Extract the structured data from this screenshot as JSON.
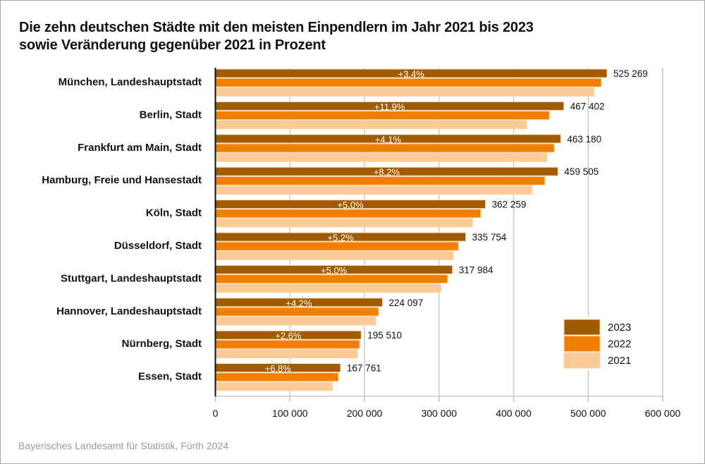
{
  "chart_data": {
    "type": "bar",
    "orientation": "horizontal",
    "title": "Die zehn deutschen Städte mit den meisten Einpendlern im Jahr 2021 bis 2023 sowie Veränderung gegenüber 2021 in Prozent",
    "title_lines": [
      "Die zehn deutschen Städte mit den meisten Einpendlern im Jahr 2021 bis 2023",
      "sowie Veränderung gegenüber 2021 in Prozent"
    ],
    "xlabel": "",
    "ylabel": "",
    "xlim": [
      0,
      600000
    ],
    "xticks": [
      0,
      100000,
      200000,
      300000,
      400000,
      500000,
      600000
    ],
    "xtick_labels": [
      "0",
      "100 000",
      "200 000",
      "300 000",
      "400 000",
      "500 000",
      "600 000"
    ],
    "grid": true,
    "legend_position": "bottom-right",
    "categories": [
      "München, Landeshauptstadt",
      "Berlin, Stadt",
      "Frankfurt am Main, Stadt",
      "Hamburg, Freie und Hansestadt",
      "Köln, Stadt",
      "Düsseldorf, Stadt",
      "Stuttgart, Landeshauptstadt",
      "Hannover, Landeshauptstadt",
      "Nürnberg, Stadt",
      "Essen, Stadt"
    ],
    "series": [
      {
        "name": "2023",
        "color": "#a05a00",
        "values": [
          525269,
          467402,
          463180,
          459505,
          362259,
          335754,
          317984,
          224097,
          195510,
          167761
        ]
      },
      {
        "name": "2022",
        "color": "#f07f00",
        "values": [
          517700,
          448000,
          454600,
          442000,
          356000,
          326000,
          311500,
          219000,
          193500,
          165000
        ]
      },
      {
        "name": "2021",
        "color": "#fbcb96",
        "values": [
          508000,
          417700,
          444900,
          424700,
          345000,
          319200,
          302800,
          215100,
          190600,
          157100
        ]
      }
    ],
    "value_labels_2023": [
      "525 269",
      "467 402",
      "463 180",
      "459 505",
      "362 259",
      "335 754",
      "317 984",
      "224 097",
      "195 510",
      "167 761"
    ],
    "change_vs_2021": [
      "+3,4%",
      "+11,9%",
      "+4,1%",
      "+8,2%",
      "+5,0%",
      "+5,2%",
      "+5,0%",
      "+4,2%",
      "+2,6%",
      "+6,8%"
    ]
  },
  "source": "Bayerisches Landesamt für Statistik, Fürth 2024"
}
